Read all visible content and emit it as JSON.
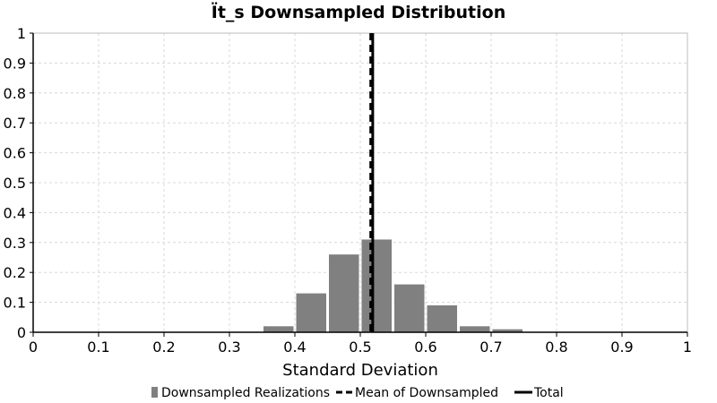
{
  "chart_data": {
    "type": "bar",
    "title": "Ït_s Downsampled Distribution",
    "xlabel": "Standard Deviation",
    "ylabel": "",
    "xlim": [
      0,
      1
    ],
    "ylim": [
      0,
      1
    ],
    "grid": true,
    "legend_position": "bottom",
    "x_ticks": [
      "0",
      "0.1",
      "0.2",
      "0.3",
      "0.4",
      "0.5",
      "0.6",
      "0.7",
      "0.8",
      "0.9",
      "1"
    ],
    "y_ticks": [
      "0",
      "0.1",
      "0.2",
      "0.3",
      "0.4",
      "0.5",
      "0.6",
      "0.7",
      "0.8",
      "0.9",
      "1"
    ],
    "bins": [
      {
        "x0": 0.35,
        "x1": 0.4,
        "value": 0.02
      },
      {
        "x0": 0.4,
        "x1": 0.45,
        "value": 0.13
      },
      {
        "x0": 0.45,
        "x1": 0.5,
        "value": 0.26
      },
      {
        "x0": 0.5,
        "x1": 0.55,
        "value": 0.31
      },
      {
        "x0": 0.55,
        "x1": 0.6,
        "value": 0.16
      },
      {
        "x0": 0.6,
        "x1": 0.65,
        "value": 0.09
      },
      {
        "x0": 0.65,
        "x1": 0.7,
        "value": 0.02
      },
      {
        "x0": 0.7,
        "x1": 0.75,
        "value": 0.01
      }
    ],
    "mean_of_downsampled": 0.516,
    "total": 0.519,
    "series": [
      {
        "name": "Downsampled Realizations",
        "color": "#808080",
        "style": "bar"
      },
      {
        "name": "Mean of Downsampled",
        "color": "#000000",
        "style": "dashed-line"
      },
      {
        "name": "Total",
        "color": "#000000",
        "style": "solid-line"
      }
    ]
  }
}
